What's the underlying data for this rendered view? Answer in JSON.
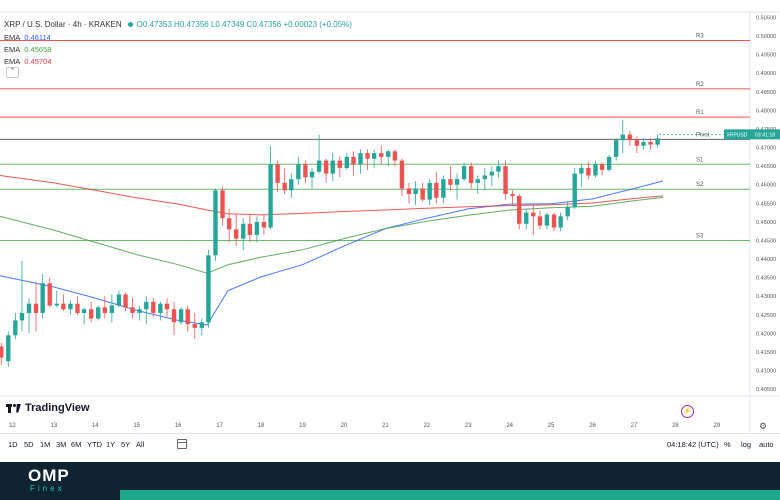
{
  "header": {
    "symbol": "XRP / U.S. Dollar · 4h · KRAKEN",
    "ohlc": "O0.47353 H0.47356 L0.47349 C0.47356 +0.00023 (+0.05%)"
  },
  "indicators": [
    {
      "label": "EMA",
      "value": "0.46114",
      "color": "#2962ff"
    },
    {
      "label": "EMA",
      "value": "0.45658",
      "color": "#43a047"
    },
    {
      "label": "EMA",
      "value": "0.45704",
      "color": "#e53935"
    }
  ],
  "chart_data": {
    "type": "candlestick",
    "ylim": [
      0.40316,
      0.50621
    ],
    "y_ticks": [
      "0.50500",
      "0.50000",
      "0.49500",
      "0.49000",
      "0.48500",
      "0.48000",
      "0.47500",
      "0.47000",
      "0.46500",
      "0.46000",
      "0.45500",
      "0.45000",
      "0.44500",
      "0.44000",
      "0.43500",
      "0.43000",
      "0.42500",
      "0.42000",
      "0.41500",
      "0.41000",
      "0.40500"
    ],
    "y_tick_values": [
      0.505,
      0.5,
      0.495,
      0.49,
      0.485,
      0.48,
      0.475,
      0.47,
      0.465,
      0.46,
      0.455,
      0.45,
      0.445,
      0.44,
      0.435,
      0.43,
      0.425,
      0.42,
      0.415,
      0.41,
      0.405
    ],
    "x_ticks": [
      "12",
      "13",
      "14",
      "15",
      "16",
      "17",
      "18",
      "19",
      "20",
      "21",
      "22",
      "23",
      "24",
      "25",
      "26",
      "27",
      "28",
      "29"
    ],
    "x_tick_days": [
      12,
      13,
      14,
      15,
      16,
      17,
      18,
      19,
      20,
      21,
      22,
      23,
      24,
      25,
      26,
      27,
      28,
      29
    ],
    "xlim_days": [
      11.7,
      29.8
    ],
    "candles": [
      {
        "x": 11.73,
        "o": 0.4165,
        "h": 0.4175,
        "l": 0.4115,
        "c": 0.4135
      },
      {
        "x": 11.9,
        "o": 0.4125,
        "h": 0.4205,
        "l": 0.411,
        "c": 0.4195
      },
      {
        "x": 12.07,
        "o": 0.4195,
        "h": 0.4255,
        "l": 0.4185,
        "c": 0.4235
      },
      {
        "x": 12.23,
        "o": 0.4235,
        "h": 0.4395,
        "l": 0.4205,
        "c": 0.4255
      },
      {
        "x": 12.4,
        "o": 0.4255,
        "h": 0.4295,
        "l": 0.42,
        "c": 0.428
      },
      {
        "x": 12.57,
        "o": 0.428,
        "h": 0.434,
        "l": 0.4205,
        "c": 0.4255
      },
      {
        "x": 12.73,
        "o": 0.4255,
        "h": 0.436,
        "l": 0.424,
        "c": 0.4335
      },
      {
        "x": 12.9,
        "o": 0.4335,
        "h": 0.435,
        "l": 0.427,
        "c": 0.4275
      },
      {
        "x": 13.07,
        "o": 0.4275,
        "h": 0.4315,
        "l": 0.427,
        "c": 0.428
      },
      {
        "x": 13.23,
        "o": 0.428,
        "h": 0.4305,
        "l": 0.426,
        "c": 0.4265
      },
      {
        "x": 13.4,
        "o": 0.4265,
        "h": 0.429,
        "l": 0.425,
        "c": 0.428
      },
      {
        "x": 13.57,
        "o": 0.428,
        "h": 0.43,
        "l": 0.425,
        "c": 0.4255
      },
      {
        "x": 13.73,
        "o": 0.4255,
        "h": 0.427,
        "l": 0.4225,
        "c": 0.4265
      },
      {
        "x": 13.9,
        "o": 0.4265,
        "h": 0.4285,
        "l": 0.423,
        "c": 0.424
      },
      {
        "x": 14.07,
        "o": 0.424,
        "h": 0.4275,
        "l": 0.4235,
        "c": 0.427
      },
      {
        "x": 14.23,
        "o": 0.427,
        "h": 0.43,
        "l": 0.424,
        "c": 0.4255
      },
      {
        "x": 14.4,
        "o": 0.4255,
        "h": 0.4305,
        "l": 0.423,
        "c": 0.4275
      },
      {
        "x": 14.57,
        "o": 0.4275,
        "h": 0.4315,
        "l": 0.427,
        "c": 0.4305
      },
      {
        "x": 14.73,
        "o": 0.4305,
        "h": 0.431,
        "l": 0.426,
        "c": 0.427
      },
      {
        "x": 14.9,
        "o": 0.427,
        "h": 0.4295,
        "l": 0.424,
        "c": 0.4255
      },
      {
        "x": 15.07,
        "o": 0.4255,
        "h": 0.4275,
        "l": 0.4235,
        "c": 0.4265
      },
      {
        "x": 15.23,
        "o": 0.4265,
        "h": 0.43,
        "l": 0.4225,
        "c": 0.4285
      },
      {
        "x": 15.4,
        "o": 0.4285,
        "h": 0.4295,
        "l": 0.4245,
        "c": 0.4255
      },
      {
        "x": 15.57,
        "o": 0.4255,
        "h": 0.4285,
        "l": 0.4235,
        "c": 0.428
      },
      {
        "x": 15.73,
        "o": 0.428,
        "h": 0.4295,
        "l": 0.4245,
        "c": 0.4265
      },
      {
        "x": 15.9,
        "o": 0.4265,
        "h": 0.4285,
        "l": 0.4195,
        "c": 0.423
      },
      {
        "x": 16.07,
        "o": 0.423,
        "h": 0.427,
        "l": 0.4225,
        "c": 0.4265
      },
      {
        "x": 16.23,
        "o": 0.4265,
        "h": 0.4275,
        "l": 0.4205,
        "c": 0.4225
      },
      {
        "x": 16.4,
        "o": 0.4225,
        "h": 0.4255,
        "l": 0.4185,
        "c": 0.4215
      },
      {
        "x": 16.57,
        "o": 0.4215,
        "h": 0.424,
        "l": 0.4195,
        "c": 0.423
      },
      {
        "x": 16.73,
        "o": 0.423,
        "h": 0.4425,
        "l": 0.4215,
        "c": 0.441
      },
      {
        "x": 16.9,
        "o": 0.441,
        "h": 0.459,
        "l": 0.4395,
        "c": 0.4585
      },
      {
        "x": 17.07,
        "o": 0.4585,
        "h": 0.4595,
        "l": 0.449,
        "c": 0.451
      },
      {
        "x": 17.23,
        "o": 0.451,
        "h": 0.4535,
        "l": 0.4445,
        "c": 0.448
      },
      {
        "x": 17.4,
        "o": 0.448,
        "h": 0.452,
        "l": 0.4435,
        "c": 0.4455
      },
      {
        "x": 17.57,
        "o": 0.4455,
        "h": 0.451,
        "l": 0.4425,
        "c": 0.4495
      },
      {
        "x": 17.73,
        "o": 0.4495,
        "h": 0.452,
        "l": 0.4445,
        "c": 0.4465
      },
      {
        "x": 17.9,
        "o": 0.4465,
        "h": 0.4515,
        "l": 0.4445,
        "c": 0.45
      },
      {
        "x": 18.07,
        "o": 0.45,
        "h": 0.452,
        "l": 0.4465,
        "c": 0.4485
      },
      {
        "x": 18.23,
        "o": 0.4485,
        "h": 0.4705,
        "l": 0.448,
        "c": 0.4655
      },
      {
        "x": 18.4,
        "o": 0.4655,
        "h": 0.4665,
        "l": 0.458,
        "c": 0.4605
      },
      {
        "x": 18.57,
        "o": 0.4605,
        "h": 0.4645,
        "l": 0.4575,
        "c": 0.4585
      },
      {
        "x": 18.73,
        "o": 0.4585,
        "h": 0.463,
        "l": 0.4565,
        "c": 0.4615
      },
      {
        "x": 18.9,
        "o": 0.4615,
        "h": 0.4675,
        "l": 0.46,
        "c": 0.4655
      },
      {
        "x": 19.07,
        "o": 0.4655,
        "h": 0.4665,
        "l": 0.4605,
        "c": 0.462
      },
      {
        "x": 19.23,
        "o": 0.462,
        "h": 0.4645,
        "l": 0.459,
        "c": 0.4635
      },
      {
        "x": 19.4,
        "o": 0.4635,
        "h": 0.4735,
        "l": 0.463,
        "c": 0.4665
      },
      {
        "x": 19.57,
        "o": 0.4665,
        "h": 0.467,
        "l": 0.4605,
        "c": 0.463
      },
      {
        "x": 19.73,
        "o": 0.463,
        "h": 0.4685,
        "l": 0.461,
        "c": 0.4665
      },
      {
        "x": 19.9,
        "o": 0.4665,
        "h": 0.4675,
        "l": 0.462,
        "c": 0.4645
      },
      {
        "x": 20.07,
        "o": 0.4645,
        "h": 0.4685,
        "l": 0.464,
        "c": 0.4675
      },
      {
        "x": 20.23,
        "o": 0.4675,
        "h": 0.469,
        "l": 0.4625,
        "c": 0.4655
      },
      {
        "x": 20.4,
        "o": 0.4655,
        "h": 0.4695,
        "l": 0.463,
        "c": 0.4685
      },
      {
        "x": 20.57,
        "o": 0.4685,
        "h": 0.4695,
        "l": 0.464,
        "c": 0.467
      },
      {
        "x": 20.73,
        "o": 0.467,
        "h": 0.4695,
        "l": 0.4645,
        "c": 0.4685
      },
      {
        "x": 20.9,
        "o": 0.4685,
        "h": 0.4705,
        "l": 0.4655,
        "c": 0.4675
      },
      {
        "x": 21.07,
        "o": 0.4675,
        "h": 0.4695,
        "l": 0.465,
        "c": 0.469
      },
      {
        "x": 21.23,
        "o": 0.469,
        "h": 0.4695,
        "l": 0.465,
        "c": 0.4665
      },
      {
        "x": 21.4,
        "o": 0.4665,
        "h": 0.467,
        "l": 0.457,
        "c": 0.459
      },
      {
        "x": 21.57,
        "o": 0.459,
        "h": 0.4605,
        "l": 0.455,
        "c": 0.4575
      },
      {
        "x": 21.73,
        "o": 0.4575,
        "h": 0.461,
        "l": 0.4545,
        "c": 0.459
      },
      {
        "x": 21.9,
        "o": 0.459,
        "h": 0.4605,
        "l": 0.4555,
        "c": 0.456
      },
      {
        "x": 22.07,
        "o": 0.456,
        "h": 0.4615,
        "l": 0.4545,
        "c": 0.4605
      },
      {
        "x": 22.23,
        "o": 0.4605,
        "h": 0.4635,
        "l": 0.455,
        "c": 0.4565
      },
      {
        "x": 22.4,
        "o": 0.4565,
        "h": 0.4625,
        "l": 0.455,
        "c": 0.4615
      },
      {
        "x": 22.57,
        "o": 0.4615,
        "h": 0.465,
        "l": 0.4585,
        "c": 0.46
      },
      {
        "x": 22.73,
        "o": 0.46,
        "h": 0.463,
        "l": 0.456,
        "c": 0.4615
      },
      {
        "x": 22.9,
        "o": 0.4615,
        "h": 0.466,
        "l": 0.461,
        "c": 0.465
      },
      {
        "x": 23.07,
        "o": 0.465,
        "h": 0.466,
        "l": 0.459,
        "c": 0.4605
      },
      {
        "x": 23.23,
        "o": 0.4605,
        "h": 0.4625,
        "l": 0.4575,
        "c": 0.4615
      },
      {
        "x": 23.4,
        "o": 0.4615,
        "h": 0.4645,
        "l": 0.4585,
        "c": 0.4625
      },
      {
        "x": 23.57,
        "o": 0.4625,
        "h": 0.465,
        "l": 0.4595,
        "c": 0.4635
      },
      {
        "x": 23.73,
        "o": 0.4635,
        "h": 0.4665,
        "l": 0.462,
        "c": 0.465
      },
      {
        "x": 23.9,
        "o": 0.465,
        "h": 0.4665,
        "l": 0.456,
        "c": 0.4575
      },
      {
        "x": 24.07,
        "o": 0.4575,
        "h": 0.4585,
        "l": 0.455,
        "c": 0.457
      },
      {
        "x": 24.23,
        "o": 0.457,
        "h": 0.4575,
        "l": 0.448,
        "c": 0.4495
      },
      {
        "x": 24.4,
        "o": 0.4495,
        "h": 0.4535,
        "l": 0.448,
        "c": 0.4525
      },
      {
        "x": 24.57,
        "o": 0.4525,
        "h": 0.4545,
        "l": 0.4465,
        "c": 0.4515
      },
      {
        "x": 24.73,
        "o": 0.4515,
        "h": 0.453,
        "l": 0.448,
        "c": 0.449
      },
      {
        "x": 24.9,
        "o": 0.449,
        "h": 0.4525,
        "l": 0.448,
        "c": 0.452
      },
      {
        "x": 25.07,
        "o": 0.452,
        "h": 0.4525,
        "l": 0.4475,
        "c": 0.4485
      },
      {
        "x": 25.23,
        "o": 0.4485,
        "h": 0.4525,
        "l": 0.4475,
        "c": 0.4515
      },
      {
        "x": 25.4,
        "o": 0.4515,
        "h": 0.4555,
        "l": 0.4505,
        "c": 0.454
      },
      {
        "x": 25.57,
        "o": 0.454,
        "h": 0.4645,
        "l": 0.4535,
        "c": 0.463
      },
      {
        "x": 25.73,
        "o": 0.463,
        "h": 0.4655,
        "l": 0.4595,
        "c": 0.4645
      },
      {
        "x": 25.9,
        "o": 0.4645,
        "h": 0.466,
        "l": 0.4615,
        "c": 0.4625
      },
      {
        "x": 26.07,
        "o": 0.4625,
        "h": 0.4665,
        "l": 0.462,
        "c": 0.4655
      },
      {
        "x": 26.23,
        "o": 0.4655,
        "h": 0.466,
        "l": 0.4625,
        "c": 0.464
      },
      {
        "x": 26.4,
        "o": 0.464,
        "h": 0.468,
        "l": 0.4635,
        "c": 0.4675
      },
      {
        "x": 26.57,
        "o": 0.4675,
        "h": 0.4725,
        "l": 0.4665,
        "c": 0.472
      },
      {
        "x": 26.73,
        "o": 0.472,
        "h": 0.4775,
        "l": 0.4685,
        "c": 0.4735
      },
      {
        "x": 26.9,
        "o": 0.4735,
        "h": 0.4745,
        "l": 0.4705,
        "c": 0.472
      },
      {
        "x": 27.07,
        "o": 0.472,
        "h": 0.473,
        "l": 0.4685,
        "c": 0.4705
      },
      {
        "x": 27.23,
        "o": 0.4705,
        "h": 0.4725,
        "l": 0.4695,
        "c": 0.4715
      },
      {
        "x": 27.4,
        "o": 0.4715,
        "h": 0.4725,
        "l": 0.4695,
        "c": 0.4708
      },
      {
        "x": 27.57,
        "o": 0.4708,
        "h": 0.4735,
        "l": 0.47,
        "c": 0.4725
      }
    ],
    "ema_series": [
      {
        "name": "EMA",
        "color": "#2962ff",
        "points": [
          [
            11.7,
            0.4355
          ],
          [
            13,
            0.4325
          ],
          [
            14,
            0.4295
          ],
          [
            15,
            0.4262
          ],
          [
            16,
            0.4235
          ],
          [
            16.7,
            0.4223
          ],
          [
            17.2,
            0.4315
          ],
          [
            18,
            0.4352
          ],
          [
            19,
            0.4385
          ],
          [
            20,
            0.4435
          ],
          [
            21,
            0.4482
          ],
          [
            22,
            0.451
          ],
          [
            23,
            0.4535
          ],
          [
            24,
            0.4548
          ],
          [
            25,
            0.4549
          ],
          [
            26,
            0.4562
          ],
          [
            27,
            0.459
          ],
          [
            27.7,
            0.461
          ]
        ]
      },
      {
        "name": "EMA",
        "color": "#43a047",
        "points": [
          [
            11.7,
            0.4515
          ],
          [
            13,
            0.4478
          ],
          [
            14,
            0.4445
          ],
          [
            15,
            0.4412
          ],
          [
            16,
            0.4385
          ],
          [
            16.7,
            0.4362
          ],
          [
            17.2,
            0.4385
          ],
          [
            18,
            0.4405
          ],
          [
            19,
            0.4425
          ],
          [
            20,
            0.4455
          ],
          [
            21,
            0.4482
          ],
          [
            22,
            0.4502
          ],
          [
            23,
            0.4518
          ],
          [
            24,
            0.4532
          ],
          [
            25,
            0.4538
          ],
          [
            26,
            0.4542
          ],
          [
            27,
            0.4557
          ],
          [
            27.7,
            0.4566
          ]
        ]
      },
      {
        "name": "EMA",
        "color": "#e53935",
        "points": [
          [
            11.7,
            0.4625
          ],
          [
            13,
            0.4605
          ],
          [
            14,
            0.4585
          ],
          [
            15,
            0.4565
          ],
          [
            16,
            0.4548
          ],
          [
            16.7,
            0.4532
          ],
          [
            17.2,
            0.4522
          ],
          [
            18,
            0.4519
          ],
          [
            19,
            0.4523
          ],
          [
            20,
            0.4528
          ],
          [
            21,
            0.4532
          ],
          [
            22,
            0.4537
          ],
          [
            23,
            0.4541
          ],
          [
            24,
            0.4544
          ],
          [
            25,
            0.4546
          ],
          [
            26,
            0.4551
          ],
          [
            27,
            0.4563
          ],
          [
            27.7,
            0.457
          ]
        ]
      }
    ],
    "pivot_levels": [
      {
        "label": "R3",
        "value": 0.4988
      },
      {
        "label": "R2",
        "value": 0.4858
      },
      {
        "label": "R1",
        "value": 0.4782
      },
      {
        "label": "Pivot",
        "value": 0.4722
      },
      {
        "label": "S1",
        "value": 0.4655
      },
      {
        "label": "S2",
        "value": 0.4588
      },
      {
        "label": "S3",
        "value": 0.445
      }
    ],
    "current_price": {
      "label": "XRPUSD",
      "value": 0.47356,
      "text": "0.47356",
      "countdown": "03:41:18"
    }
  },
  "toolbar": {
    "timeframes": [
      "1D",
      "5D",
      "1M",
      "3M",
      "6M",
      "YTD",
      "1Y",
      "5Y",
      "All"
    ],
    "time": "04:18:42 (UTC)",
    "percent": "%",
    "log": "log",
    "auto": "auto"
  },
  "branding": {
    "tv_logo": "TradingView",
    "omp": "OMP",
    "finex": "Finex"
  }
}
